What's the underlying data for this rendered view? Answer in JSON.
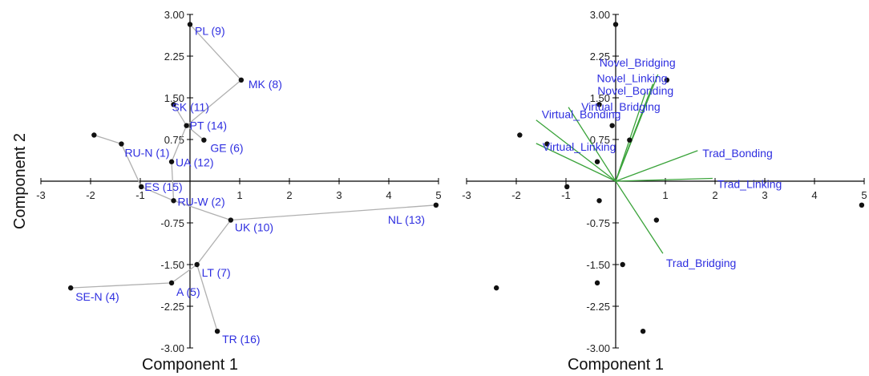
{
  "chart_data": [
    {
      "type": "scatter",
      "title": "",
      "xlabel": "Component 1",
      "ylabel": "Component 2",
      "xlim": [
        -3,
        5
      ],
      "ylim": [
        -3,
        3
      ],
      "x_ticks": [
        -3,
        -2,
        -1,
        1,
        2,
        3,
        4,
        5
      ],
      "y_ticks": [
        "3.00",
        "2.25",
        "1.50",
        "0.75",
        "-0.75",
        "-1.50",
        "-2.25",
        "-3.00"
      ],
      "point_color": "#111111",
      "label_color": "#2f2fe0",
      "edge_color": "#b0b0b0",
      "points": [
        {
          "label": "PL (9)",
          "x": 0.0,
          "y": 2.82
        },
        {
          "label": "MK (8)",
          "x": 1.03,
          "y": 1.82
        },
        {
          "label": "SK (11)",
          "x": -0.33,
          "y": 1.38
        },
        {
          "label": "PT (14)",
          "x": -0.07,
          "y": 1.0
        },
        {
          "label": "GE (6)",
          "x": 0.28,
          "y": 0.74
        },
        {
          "label": "RU-N (1)",
          "x": -1.38,
          "y": 0.67
        },
        {
          "label": "UA (12)",
          "x": -0.37,
          "y": 0.35
        },
        {
          "label": "ES (15)",
          "x": -0.98,
          "y": -0.1
        },
        {
          "label": "RU-W (2)",
          "x": -0.33,
          "y": -0.35
        },
        {
          "label": "UK (10)",
          "x": 0.82,
          "y": -0.7
        },
        {
          "label": "NL (13)",
          "x": 4.95,
          "y": -0.43
        },
        {
          "label": "LT (7)",
          "x": 0.14,
          "y": -1.5
        },
        {
          "label": "A (5)",
          "x": -0.37,
          "y": -1.83
        },
        {
          "label": "SE-N (4)",
          "x": -2.4,
          "y": -1.92
        },
        {
          "label": "TR (16)",
          "x": 0.55,
          "y": -2.7
        },
        {
          "label": "",
          "x": -1.93,
          "y": 0.83
        }
      ],
      "edges": [
        [
          "PL (9)",
          "MK (8)"
        ],
        [
          "MK (8)",
          "PT (14)"
        ],
        [
          "PT (14)",
          "SK (11)"
        ],
        [
          "PT (14)",
          "GE (6)"
        ],
        [
          "PT (14)",
          "UA (12)"
        ],
        [
          "UA (12)",
          "RU-W (2)"
        ],
        [
          "RU-W (2)",
          "ES (15)"
        ],
        [
          "ES (15)",
          "RU-N (1)"
        ],
        [
          "RU-N (1)",
          ""
        ],
        [
          "RU-W (2)",
          "UK (10)"
        ],
        [
          "UK (10)",
          "NL (13)"
        ],
        [
          "UK (10)",
          "LT (7)"
        ],
        [
          "LT (7)",
          "A (5)"
        ],
        [
          "A (5)",
          "SE-N (4)"
        ],
        [
          "LT (7)",
          "TR (16)"
        ]
      ]
    },
    {
      "type": "scatter",
      "title": "",
      "xlabel": "Component 1",
      "ylabel": "",
      "xlim": [
        -3,
        5
      ],
      "ylim": [
        -3,
        3
      ],
      "x_ticks": [
        -3,
        -2,
        -1,
        1,
        2,
        3,
        4,
        5
      ],
      "y_ticks": [
        "3.00",
        "2.25",
        "1.50",
        "0.75",
        "-0.75",
        "-1.50",
        "-2.25",
        "-3.00"
      ],
      "point_color": "#111111",
      "vector_color": "#3aa33a",
      "label_color": "#2f2fe0",
      "points": [
        {
          "x": 0.0,
          "y": 2.82
        },
        {
          "x": 1.03,
          "y": 1.82
        },
        {
          "x": -0.33,
          "y": 1.38
        },
        {
          "x": -0.07,
          "y": 1.0
        },
        {
          "x": 0.28,
          "y": 0.74
        },
        {
          "x": -1.38,
          "y": 0.67
        },
        {
          "x": -0.37,
          "y": 0.35
        },
        {
          "x": -0.98,
          "y": -0.1
        },
        {
          "x": -0.33,
          "y": -0.35
        },
        {
          "x": 0.82,
          "y": -0.7
        },
        {
          "x": 4.95,
          "y": -0.43
        },
        {
          "x": 0.14,
          "y": -1.5
        },
        {
          "x": -0.37,
          "y": -1.83
        },
        {
          "x": -2.4,
          "y": -1.92
        },
        {
          "x": 0.55,
          "y": -2.7
        },
        {
          "x": -1.93,
          "y": 0.83
        }
      ],
      "vectors": [
        {
          "label": "Novel_Bridging",
          "x": 0.85,
          "y": 1.92
        },
        {
          "label": "Novel_Linking",
          "x": 0.75,
          "y": 1.75
        },
        {
          "label": "Novel_Bonding",
          "x": 0.6,
          "y": 1.6
        },
        {
          "label": "Virtual_Bridging",
          "x": -0.95,
          "y": 1.33
        },
        {
          "label": "Virtual_Bonding",
          "x": -1.6,
          "y": 1.1
        },
        {
          "label": "Virtual_Linking",
          "x": -1.6,
          "y": 0.68
        },
        {
          "label": "Trad_Bonding",
          "x": 1.65,
          "y": 0.55
        },
        {
          "label": "Trad_Linking",
          "x": 1.95,
          "y": 0.05
        },
        {
          "label": "Trad_Bridging",
          "x": 0.95,
          "y": -1.3
        }
      ]
    }
  ]
}
